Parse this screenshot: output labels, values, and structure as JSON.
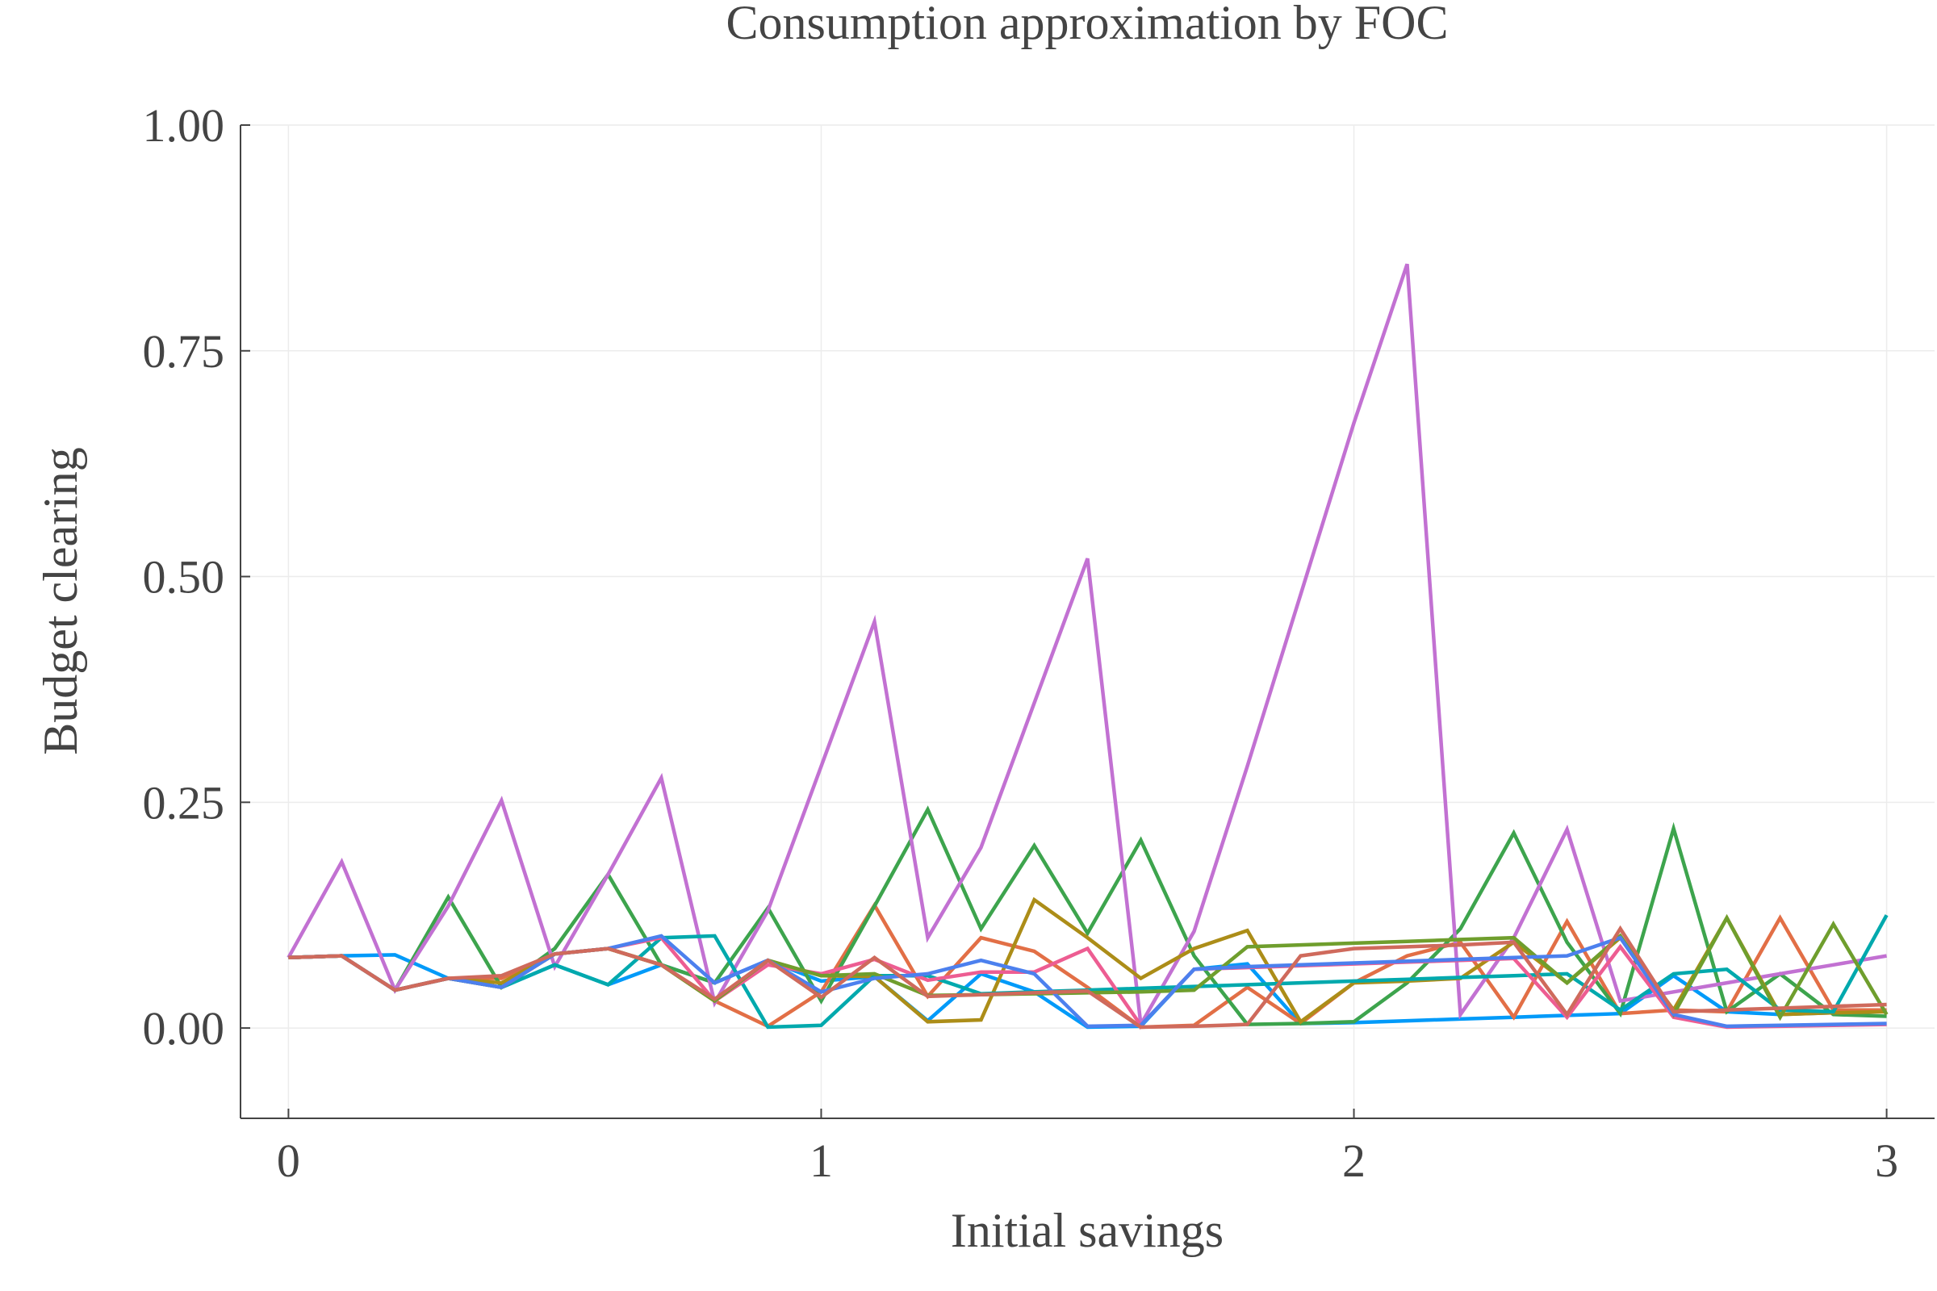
{
  "chart_data": {
    "type": "line",
    "title": "Consumption approximation by FOC",
    "xlabel": "Initial savings",
    "ylabel": "Budget clearing",
    "xlim": [
      -0.09,
      3.09
    ],
    "ylim": [
      -0.1,
      1.0
    ],
    "xticks": [
      0,
      1,
      2,
      3
    ],
    "xtick_labels": [
      "0",
      "1",
      "2",
      "3"
    ],
    "yticks": [
      0.0,
      0.25,
      0.5,
      0.75,
      1.0
    ],
    "ytick_labels": [
      "0.00",
      "0.25",
      "0.50",
      "0.75",
      "1.00"
    ],
    "grid": true,
    "legend": "none",
    "x": [
      0.0,
      0.1,
      0.2,
      0.3,
      0.4,
      0.5,
      0.6,
      0.7,
      0.8,
      0.9,
      1.0,
      1.1,
      1.2,
      1.3,
      1.4,
      1.5,
      1.6,
      1.7,
      1.8,
      1.9,
      2.0,
      2.1,
      2.2,
      2.3,
      2.4,
      2.5,
      2.6,
      2.7,
      2.8,
      2.9,
      3.0
    ],
    "series": [
      {
        "color": "#009af9",
        "values": [
          0.078,
          0.08,
          0.081,
          0.055,
          0.045,
          0.07,
          0.048,
          0.07,
          0.05,
          0.075,
          0.052,
          0.057,
          0.008,
          0.06,
          0.04,
          0.001,
          0.002,
          0.065,
          0.071,
          0.005,
          0.006,
          0.008,
          0.01,
          0.012,
          0.014,
          0.016,
          0.058,
          0.018,
          0.015,
          0.017,
          0.02
        ]
      },
      {
        "color": "#e26f46",
        "values": [
          0.078,
          0.08,
          0.042,
          0.055,
          0.055,
          0.082,
          0.088,
          0.07,
          0.03,
          0.002,
          0.04,
          0.136,
          0.035,
          0.1,
          0.085,
          0.045,
          0.001,
          0.003,
          0.045,
          0.005,
          0.05,
          0.08,
          0.095,
          0.012,
          0.118,
          0.016,
          0.02,
          0.018,
          0.122,
          0.02,
          0.02
        ]
      },
      {
        "color": "#3da44d",
        "values": [
          0.078,
          0.08,
          0.042,
          0.145,
          0.045,
          0.088,
          0.17,
          0.07,
          0.05,
          0.133,
          0.03,
          0.135,
          0.242,
          0.11,
          0.202,
          0.105,
          0.208,
          0.08,
          0.004,
          0.005,
          0.007,
          0.05,
          0.11,
          0.216,
          0.095,
          0.016,
          0.221,
          0.018,
          0.06,
          0.015,
          0.013
        ]
      },
      {
        "color": "#c271d2",
        "values": [
          0.078,
          0.184,
          0.042,
          0.135,
          0.252,
          0.068,
          0.17,
          0.277,
          0.028,
          0.13,
          0.29,
          0.45,
          0.1,
          0.2,
          0.36,
          0.52,
          0.004,
          0.107,
          0.29,
          0.48,
          0.67,
          0.846,
          0.015,
          0.1,
          0.22,
          0.03,
          0.04,
          0.05,
          0.06,
          0.07,
          0.08
        ]
      },
      {
        "color": "#ac8d18",
        "values": [
          0.078,
          0.08,
          0.042,
          0.055,
          0.05,
          0.082,
          0.088,
          0.07,
          0.03,
          0.075,
          0.058,
          0.057,
          0.007,
          0.009,
          0.142,
          0.1,
          0.055,
          0.088,
          0.108,
          0.007,
          0.05,
          0.052,
          0.055,
          0.095,
          0.05,
          0.1,
          0.02,
          0.122,
          0.015,
          0.017,
          0.018
        ]
      },
      {
        "color": "#00a9ad",
        "values": [
          0.078,
          0.08,
          0.042,
          0.055,
          0.045,
          0.07,
          0.048,
          0.1,
          0.102,
          0.001,
          0.003,
          0.058,
          0.058,
          0.038,
          0.04,
          0.042,
          0.044,
          0.046,
          0.048,
          0.05,
          0.052,
          0.054,
          0.056,
          0.058,
          0.06,
          0.02,
          0.06,
          0.065,
          0.02,
          0.018,
          0.125
        ]
      },
      {
        "color": "#ed5d92",
        "values": [
          0.078,
          0.08,
          0.042,
          0.055,
          0.045,
          0.082,
          0.088,
          0.1,
          0.03,
          0.07,
          0.06,
          0.076,
          0.053,
          0.062,
          0.062,
          0.088,
          0.003,
          0.065,
          0.067,
          0.069,
          0.071,
          0.073,
          0.075,
          0.077,
          0.012,
          0.09,
          0.012,
          0.001,
          0.002,
          0.003,
          0.004
        ]
      },
      {
        "color": "#6f9e2d",
        "values": [
          0.078,
          0.08,
          0.042,
          0.055,
          0.045,
          0.082,
          0.088,
          0.07,
          0.03,
          0.075,
          0.058,
          0.06,
          0.036,
          0.037,
          0.038,
          0.039,
          0.04,
          0.042,
          0.09,
          0.092,
          0.094,
          0.096,
          0.098,
          0.1,
          0.05,
          0.102,
          0.015,
          0.122,
          0.012,
          0.115,
          0.015
        ]
      },
      {
        "color": "#4c80ee",
        "values": [
          0.078,
          0.08,
          0.042,
          0.055,
          0.045,
          0.082,
          0.088,
          0.102,
          0.05,
          0.075,
          0.04,
          0.055,
          0.06,
          0.075,
          0.06,
          0.002,
          0.003,
          0.065,
          0.068,
          0.07,
          0.072,
          0.074,
          0.076,
          0.078,
          0.08,
          0.1,
          0.015,
          0.002,
          0.003,
          0.004,
          0.005
        ]
      },
      {
        "color": "#cf6a5c",
        "values": [
          0.078,
          0.08,
          0.042,
          0.055,
          0.058,
          0.082,
          0.088,
          0.07,
          0.032,
          0.075,
          0.034,
          0.078,
          0.035,
          0.037,
          0.039,
          0.041,
          0.001,
          0.002,
          0.004,
          0.08,
          0.088,
          0.09,
          0.092,
          0.095,
          0.015,
          0.11,
          0.018,
          0.02,
          0.022,
          0.024,
          0.026
        ]
      }
    ]
  }
}
